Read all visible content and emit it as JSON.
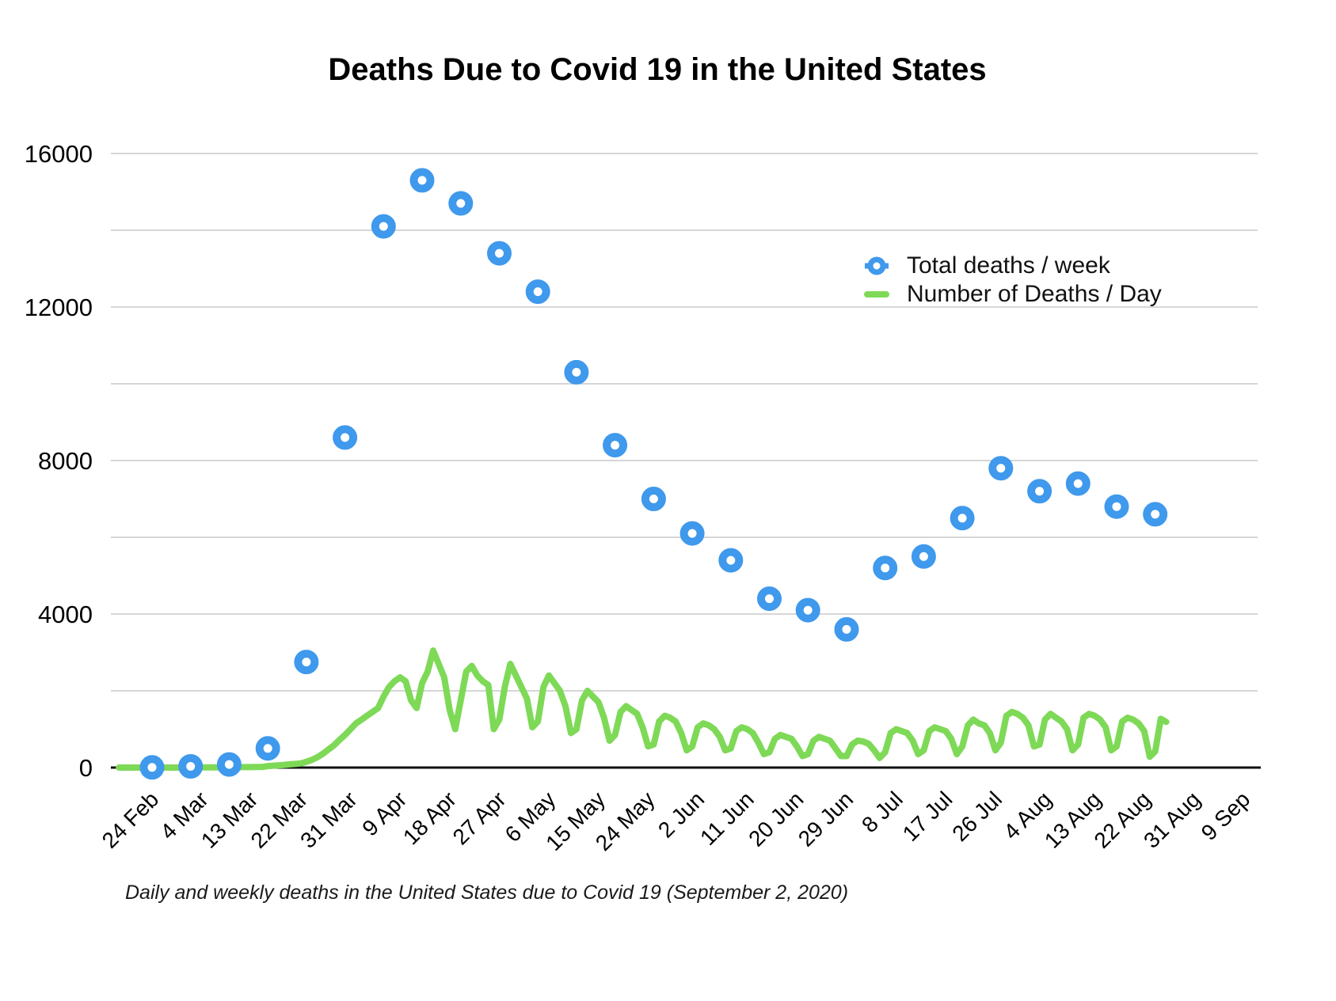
{
  "page": {
    "background": "#ffffff"
  },
  "chart_data": {
    "type": "line",
    "title": "Deaths Due to Covid 19 in the United States",
    "caption": "Daily and weekly deaths in the United States due to Covid 19 (September 2, 2020)",
    "ylim": [
      0,
      16000
    ],
    "y_axis_ticks": [
      0,
      4000,
      8000,
      12000,
      16000
    ],
    "gridline_step": 2000,
    "grid": "horizontal",
    "x_tick_interval_days": 9,
    "x_tick_labels": [
      "24 Feb",
      "4 Mar",
      "13 Mar",
      "22 Mar",
      "31 Mar",
      "9 Apr",
      "18 Apr",
      "27 Apr",
      "6 May",
      "15 May",
      "24 May",
      "2 Jun",
      "11 Jun",
      "20 Jun",
      "29 Jun",
      "8 Jul",
      "17 Jul",
      "26 Jul",
      "4 Aug",
      "13 Aug",
      "22 Aug",
      "31 Aug",
      "9 Sep"
    ],
    "legend_position": "upper-right",
    "colors": {
      "weekly_series": "#3f99ec",
      "daily_series": "#7ed957",
      "gridline": "#c8c8c8",
      "axis": "#111111",
      "text": "#111111"
    },
    "series": [
      {
        "name": "Total deaths / week",
        "type": "scatter",
        "marker": "ring",
        "color": "#3f99ec",
        "interval_days": 7,
        "dates": [
          "24 Feb",
          "2 Mar",
          "9 Mar",
          "16 Mar",
          "23 Mar",
          "30 Mar",
          "6 Apr",
          "13 Apr",
          "20 Apr",
          "27 Apr",
          "4 May",
          "11 May",
          "18 May",
          "25 May",
          "1 Jun",
          "8 Jun",
          "15 Jun",
          "22 Jun",
          "29 Jun",
          "6 Jul",
          "13 Jul",
          "20 Jul",
          "27 Jul",
          "3 Aug",
          "10 Aug",
          "17 Aug",
          "24 Aug"
        ],
        "values": [
          5,
          30,
          80,
          500,
          2750,
          8600,
          14100,
          15300,
          14700,
          13400,
          12400,
          10300,
          8400,
          7000,
          6100,
          5400,
          4400,
          4100,
          3600,
          5200,
          5500,
          6500,
          7800,
          7200,
          7400,
          6800,
          6600
        ]
      },
      {
        "name": "Number of Deaths / Day",
        "type": "line",
        "color": "#7ed957",
        "interval_days": 1,
        "start_date": "18 Feb",
        "start_day_offset": -6,
        "values": [
          0,
          0,
          0,
          0,
          0,
          0,
          0,
          0,
          1,
          1,
          1,
          1,
          1,
          2,
          3,
          3,
          4,
          5,
          6,
          7,
          7,
          9,
          10,
          12,
          13,
          14,
          15,
          40,
          50,
          60,
          70,
          85,
          95,
          110,
          150,
          200,
          270,
          360,
          470,
          580,
          720,
          850,
          1000,
          1150,
          1250,
          1350,
          1450,
          1550,
          1850,
          2100,
          2250,
          2350,
          2250,
          1750,
          1550,
          2200,
          2500,
          3050,
          2700,
          2350,
          1500,
          1000,
          1750,
          2500,
          2650,
          2400,
          2250,
          2150,
          1000,
          1250,
          2100,
          2700,
          2400,
          2100,
          1800,
          1050,
          1200,
          2100,
          2400,
          2200,
          2000,
          1600,
          900,
          1000,
          1750,
          2000,
          1850,
          1700,
          1300,
          700,
          850,
          1450,
          1600,
          1500,
          1400,
          1050,
          550,
          600,
          1200,
          1350,
          1300,
          1200,
          900,
          450,
          550,
          1050,
          1150,
          1100,
          1000,
          800,
          450,
          500,
          950,
          1050,
          1000,
          900,
          650,
          350,
          400,
          750,
          850,
          800,
          750,
          550,
          300,
          350,
          700,
          800,
          750,
          700,
          500,
          300,
          300,
          600,
          700,
          680,
          620,
          450,
          250,
          400,
          900,
          1000,
          950,
          900,
          700,
          350,
          450,
          950,
          1050,
          1000,
          950,
          750,
          350,
          550,
          1100,
          1250,
          1150,
          1100,
          900,
          450,
          650,
          1350,
          1450,
          1400,
          1300,
          1100,
          550,
          600,
          1250,
          1400,
          1300,
          1200,
          1000,
          450,
          600,
          1300,
          1400,
          1350,
          1250,
          1050,
          450,
          550,
          1200,
          1300,
          1250,
          1150,
          950,
          280,
          420,
          1270,
          1190
        ]
      }
    ]
  }
}
